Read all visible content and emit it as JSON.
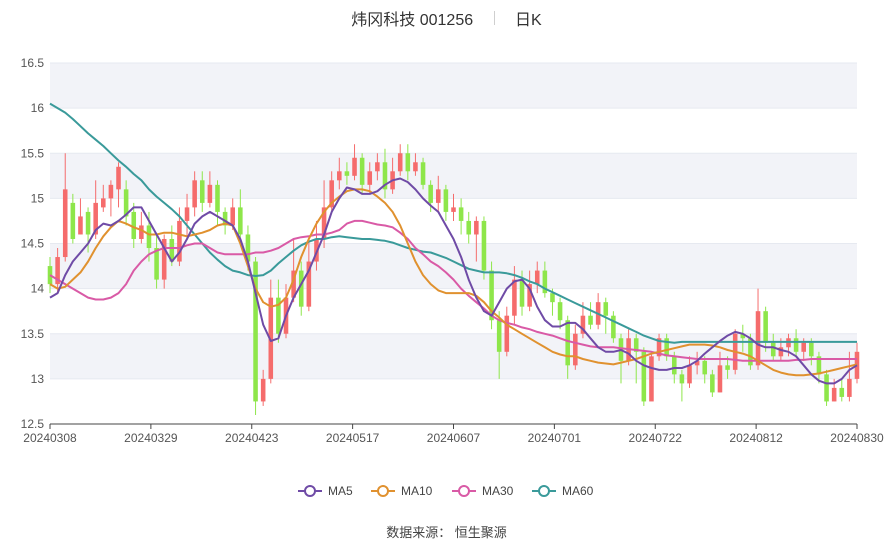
{
  "header": {
    "title": "炜冈科技 001256",
    "period": "日K"
  },
  "footer": {
    "source": "数据来源： 恒生聚源"
  },
  "colors": {
    "up": "#f56c6c",
    "down": "#8ee64a",
    "MA5": "#6f4ba6",
    "MA10": "#e0912f",
    "MA30": "#d95aa6",
    "MA60": "#3a9a9a",
    "grid": "#e6e9f0",
    "band": "#f2f3f8"
  },
  "chart_data": {
    "type": "candlestick",
    "ylim": [
      12.5,
      16.5
    ],
    "yticks": [
      "12.5",
      "13",
      "13.5",
      "14",
      "14.5",
      "15",
      "15.5",
      "16",
      "16.5"
    ],
    "xtick_labels": [
      "20240308",
      "20240329",
      "20240423",
      "20240517",
      "20240607",
      "20240701",
      "20240722",
      "20240812",
      "20240830"
    ],
    "legend": [
      "MA5",
      "MA10",
      "MA30",
      "MA60"
    ],
    "legend_position": "bottom-center",
    "candles": [
      [
        14.25,
        14.05,
        14.35,
        13.95
      ],
      [
        14.05,
        14.35,
        14.45,
        13.95
      ],
      [
        14.35,
        15.1,
        15.5,
        14.3
      ],
      [
        14.95,
        14.55,
        15.05,
        14.5
      ],
      [
        14.6,
        14.8,
        15.0,
        14.6
      ],
      [
        14.85,
        14.6,
        14.9,
        14.4
      ],
      [
        14.6,
        14.95,
        15.2,
        14.55
      ],
      [
        14.9,
        15.0,
        15.15,
        14.85
      ],
      [
        15.0,
        15.15,
        15.2,
        14.8
      ],
      [
        15.1,
        15.35,
        15.4,
        14.9
      ],
      [
        15.1,
        14.8,
        15.2,
        14.7
      ],
      [
        14.85,
        14.55,
        14.95,
        14.45
      ],
      [
        14.55,
        14.7,
        14.85,
        14.5
      ],
      [
        14.7,
        14.45,
        14.85,
        14.3
      ],
      [
        14.45,
        14.1,
        14.6,
        14.0
      ],
      [
        14.1,
        14.55,
        14.6,
        14.0
      ],
      [
        14.55,
        14.3,
        14.7,
        14.25
      ],
      [
        14.3,
        14.75,
        14.9,
        14.25
      ],
      [
        14.75,
        14.9,
        15.05,
        14.55
      ],
      [
        14.9,
        15.2,
        15.3,
        14.8
      ],
      [
        15.2,
        14.95,
        15.3,
        14.85
      ],
      [
        14.95,
        15.15,
        15.3,
        14.9
      ],
      [
        15.15,
        14.85,
        15.2,
        14.7
      ],
      [
        14.85,
        14.7,
        14.9,
        14.6
      ],
      [
        14.7,
        14.9,
        15.0,
        14.65
      ],
      [
        14.9,
        14.6,
        15.1,
        14.55
      ],
      [
        14.6,
        14.3,
        14.7,
        14.2
      ],
      [
        14.3,
        12.75,
        14.35,
        12.6
      ],
      [
        12.75,
        13.0,
        13.1,
        12.7
      ],
      [
        13.0,
        13.9,
        14.1,
        12.95
      ],
      [
        13.9,
        13.5,
        14.1,
        13.4
      ],
      [
        13.5,
        13.9,
        14.05,
        13.45
      ],
      [
        13.9,
        14.2,
        14.55,
        13.85
      ],
      [
        14.2,
        13.8,
        14.3,
        13.7
      ],
      [
        13.8,
        14.3,
        14.55,
        13.75
      ],
      [
        14.3,
        14.55,
        14.75,
        14.2
      ],
      [
        14.55,
        14.9,
        15.2,
        14.45
      ],
      [
        14.9,
        15.2,
        15.3,
        14.85
      ],
      [
        15.2,
        15.3,
        15.45,
        15.1
      ],
      [
        15.3,
        15.25,
        15.4,
        15.15
      ],
      [
        15.25,
        15.45,
        15.6,
        15.2
      ],
      [
        15.45,
        15.15,
        15.5,
        15.05
      ],
      [
        15.15,
        15.3,
        15.4,
        15.05
      ],
      [
        15.3,
        15.4,
        15.5,
        15.2
      ],
      [
        15.4,
        15.1,
        15.55,
        15.0
      ],
      [
        15.1,
        15.3,
        15.45,
        15.05
      ],
      [
        15.3,
        15.5,
        15.6,
        15.25
      ],
      [
        15.5,
        15.3,
        15.6,
        15.2
      ],
      [
        15.3,
        15.4,
        15.5,
        15.25
      ],
      [
        15.4,
        15.15,
        15.45,
        15.1
      ],
      [
        15.15,
        14.95,
        15.2,
        14.85
      ],
      [
        14.95,
        15.1,
        15.25,
        14.85
      ],
      [
        15.1,
        14.85,
        15.15,
        14.75
      ],
      [
        14.85,
        14.9,
        15.05,
        14.75
      ],
      [
        14.9,
        14.75,
        15.0,
        14.6
      ],
      [
        14.75,
        14.6,
        14.85,
        14.5
      ],
      [
        14.6,
        14.75,
        14.8,
        14.3
      ],
      [
        14.75,
        14.2,
        14.8,
        14.1
      ],
      [
        14.2,
        13.65,
        14.3,
        13.55
      ],
      [
        13.65,
        13.3,
        13.75,
        13.0
      ],
      [
        13.3,
        13.7,
        13.8,
        13.25
      ],
      [
        13.7,
        14.1,
        14.25,
        13.6
      ],
      [
        14.1,
        13.8,
        14.2,
        13.7
      ],
      [
        13.8,
        14.05,
        14.2,
        13.75
      ],
      [
        14.05,
        14.2,
        14.3,
        13.95
      ],
      [
        14.2,
        13.95,
        14.3,
        13.9
      ],
      [
        13.95,
        13.85,
        14.0,
        13.7
      ],
      [
        13.85,
        13.65,
        13.9,
        13.55
      ],
      [
        13.65,
        13.15,
        13.7,
        13.0
      ],
      [
        13.15,
        13.5,
        13.6,
        13.1
      ],
      [
        13.5,
        13.7,
        13.85,
        13.45
      ],
      [
        13.7,
        13.6,
        13.85,
        13.55
      ],
      [
        13.6,
        13.85,
        13.95,
        13.55
      ],
      [
        13.85,
        13.7,
        13.9,
        13.5
      ],
      [
        13.7,
        13.45,
        13.75,
        13.4
      ],
      [
        13.45,
        13.2,
        13.5,
        12.95
      ],
      [
        13.2,
        13.45,
        13.55,
        13.15
      ],
      [
        13.45,
        13.3,
        13.5,
        12.95
      ],
      [
        13.3,
        12.75,
        13.35,
        12.7
      ],
      [
        12.75,
        13.25,
        13.3,
        12.95
      ],
      [
        13.25,
        13.45,
        13.5,
        13.2
      ],
      [
        13.45,
        13.25,
        13.5,
        13.2
      ],
      [
        13.25,
        13.05,
        13.3,
        12.95
      ],
      [
        13.05,
        12.95,
        13.1,
        12.75
      ],
      [
        12.95,
        13.15,
        13.25,
        12.9
      ],
      [
        13.15,
        13.2,
        13.3,
        13.05
      ],
      [
        13.2,
        13.05,
        13.25,
        12.95
      ],
      [
        13.05,
        12.85,
        13.1,
        12.8
      ],
      [
        12.85,
        13.15,
        13.3,
        12.85
      ],
      [
        13.15,
        13.1,
        13.25,
        13.0
      ],
      [
        13.1,
        13.5,
        13.55,
        13.05
      ],
      [
        13.5,
        13.45,
        13.6,
        13.3
      ],
      [
        13.45,
        13.15,
        13.5,
        13.1
      ],
      [
        13.15,
        13.75,
        14.0,
        13.1
      ],
      [
        13.75,
        13.4,
        13.8,
        13.3
      ],
      [
        13.4,
        13.25,
        13.5,
        13.2
      ],
      [
        13.25,
        13.35,
        13.45,
        13.2
      ],
      [
        13.35,
        13.45,
        13.5,
        13.25
      ],
      [
        13.45,
        13.3,
        13.55,
        13.25
      ],
      [
        13.3,
        13.4,
        13.45,
        13.2
      ],
      [
        13.4,
        13.25,
        13.45,
        13.15
      ],
      [
        13.25,
        13.05,
        13.3,
        12.95
      ],
      [
        13.05,
        12.75,
        13.1,
        12.7
      ],
      [
        12.75,
        12.9,
        13.0,
        12.75
      ],
      [
        12.9,
        12.8,
        13.0,
        12.75
      ],
      [
        12.8,
        13.0,
        13.3,
        12.75
      ],
      [
        13.0,
        13.3,
        13.4,
        12.95
      ]
    ],
    "ma": {
      "MA5": [
        13.9,
        13.95,
        14.15,
        14.3,
        14.4,
        14.5,
        14.65,
        14.72,
        14.7,
        14.75,
        14.82,
        14.9,
        14.9,
        14.75,
        14.6,
        14.45,
        14.3,
        14.4,
        14.55,
        14.72,
        14.8,
        14.85,
        14.8,
        14.75,
        14.7,
        14.55,
        14.3,
        13.95,
        13.6,
        13.42,
        13.45,
        13.7,
        13.9,
        14.05,
        14.2,
        14.4,
        14.6,
        14.85,
        15.0,
        15.12,
        15.1,
        15.05,
        15.05,
        15.08,
        15.15,
        15.2,
        15.22,
        15.18,
        15.1,
        15.0,
        14.92,
        14.85,
        14.7,
        14.55,
        14.35,
        14.1,
        13.9,
        13.75,
        13.7,
        13.85,
        14.0,
        14.08,
        14.1,
        14.0,
        13.8,
        13.65,
        13.58,
        13.58,
        13.62,
        13.62,
        13.55,
        13.45,
        13.35,
        13.3,
        13.3,
        13.32,
        13.28,
        13.2,
        13.15,
        13.12,
        13.1,
        13.1,
        13.12,
        13.12,
        13.15,
        13.2,
        13.28,
        13.35,
        13.42,
        13.48,
        13.52,
        13.5,
        13.45,
        13.38,
        13.35,
        13.35,
        13.32,
        13.3,
        13.25,
        13.15,
        13.05,
        12.98,
        12.95,
        12.95,
        13.0,
        13.1,
        13.15
      ],
      "MA10": [
        14.05,
        14.0,
        14.02,
        14.1,
        14.18,
        14.3,
        14.45,
        14.58,
        14.68,
        14.75,
        14.72,
        14.68,
        14.65,
        14.6,
        14.6,
        14.62,
        14.62,
        14.6,
        14.58,
        14.6,
        14.62,
        14.65,
        14.7,
        14.72,
        14.7,
        14.5,
        14.25,
        14.0,
        13.85,
        13.8,
        13.82,
        13.9,
        14.1,
        14.35,
        14.55,
        14.72,
        14.85,
        14.95,
        15.02,
        15.08,
        15.1,
        15.1,
        15.08,
        15.02,
        14.95,
        14.85,
        14.7,
        14.5,
        14.3,
        14.15,
        14.05,
        13.98,
        13.95,
        13.95,
        13.95,
        13.95,
        13.92,
        13.85,
        13.75,
        13.68,
        13.6,
        13.55,
        13.5,
        13.45,
        13.4,
        13.35,
        13.3,
        13.27,
        13.25,
        13.25,
        13.22,
        13.2,
        13.18,
        13.17,
        13.16,
        13.18,
        13.2,
        13.22,
        13.25,
        13.28,
        13.3,
        13.32,
        13.34,
        13.36,
        13.38,
        13.38,
        13.38,
        13.37,
        13.35,
        13.32,
        13.3,
        13.28,
        13.25,
        13.2,
        13.15,
        13.1,
        13.07,
        13.05,
        13.04,
        13.04,
        13.05,
        13.06,
        13.08,
        13.1,
        13.12,
        13.14,
        13.16
      ],
      "MA30": [
        14.15,
        14.1,
        14.05,
        14.0,
        13.95,
        13.9,
        13.88,
        13.88,
        13.9,
        13.95,
        14.05,
        14.2,
        14.3,
        14.38,
        14.42,
        14.45,
        14.45,
        14.45,
        14.48,
        14.5,
        14.5,
        14.45,
        14.4,
        14.38,
        14.38,
        14.38,
        14.38,
        14.4,
        14.4,
        14.42,
        14.45,
        14.5,
        14.55,
        14.57,
        14.58,
        14.6,
        14.6,
        14.62,
        14.65,
        14.72,
        14.75,
        14.75,
        14.73,
        14.71,
        14.7,
        14.68,
        14.62,
        14.55,
        14.45,
        14.38,
        14.3,
        14.25,
        14.18,
        14.1,
        14.0,
        13.92,
        13.85,
        13.78,
        13.7,
        13.65,
        13.62,
        13.6,
        13.57,
        13.55,
        13.52,
        13.5,
        13.48,
        13.45,
        13.42,
        13.4,
        13.38,
        13.36,
        13.35,
        13.35,
        13.35,
        13.34,
        13.33,
        13.32,
        13.31,
        13.3,
        13.28,
        13.26,
        13.25,
        13.24,
        13.23,
        13.22,
        13.22,
        13.22,
        13.22,
        13.22,
        13.21,
        13.2,
        13.2,
        13.2,
        13.2,
        13.2,
        13.2,
        13.2,
        13.21,
        13.21,
        13.22,
        13.22,
        13.22,
        13.22,
        13.22,
        13.22,
        13.22
      ],
      "MA60": [
        16.05,
        16.0,
        15.95,
        15.88,
        15.8,
        15.72,
        15.65,
        15.58,
        15.5,
        15.42,
        15.35,
        15.27,
        15.2,
        15.1,
        15.02,
        14.95,
        14.88,
        14.8,
        14.7,
        14.6,
        14.5,
        14.4,
        14.32,
        14.25,
        14.2,
        14.18,
        14.15,
        14.14,
        14.15,
        14.2,
        14.28,
        14.35,
        14.42,
        14.48,
        14.52,
        14.55,
        14.55,
        14.57,
        14.58,
        14.57,
        14.56,
        14.55,
        14.55,
        14.54,
        14.53,
        14.51,
        14.48,
        14.45,
        14.43,
        14.41,
        14.4,
        14.37,
        14.34,
        14.3,
        14.26,
        14.22,
        14.2,
        14.18,
        14.18,
        14.18,
        14.17,
        14.15,
        14.12,
        14.08,
        14.05,
        14.0,
        13.96,
        13.92,
        13.88,
        13.84,
        13.8,
        13.76,
        13.72,
        13.68,
        13.64,
        13.6,
        13.56,
        13.52,
        13.48,
        13.45,
        13.42,
        13.41,
        13.4,
        13.41,
        13.41,
        13.41,
        13.41,
        13.41,
        13.41,
        13.41,
        13.41,
        13.41,
        13.41,
        13.41,
        13.41,
        13.41,
        13.41,
        13.41,
        13.41,
        13.41,
        13.41,
        13.41,
        13.41,
        13.41,
        13.41,
        13.41,
        13.41
      ]
    }
  }
}
